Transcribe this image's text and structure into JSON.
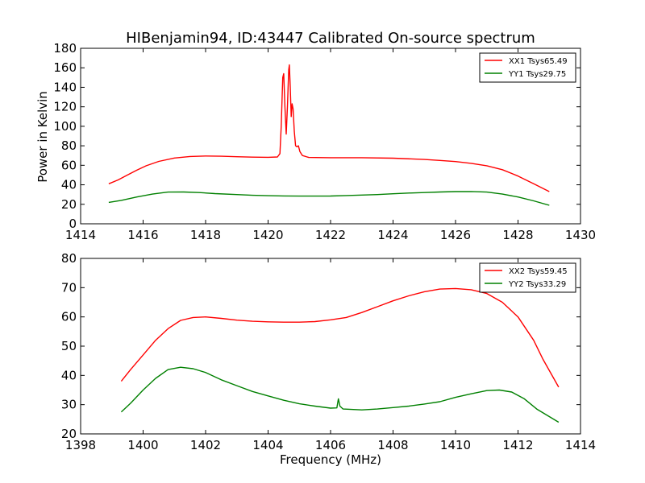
{
  "figure": {
    "title": "HIBenjamin94, ID:43447 Calibrated On-source spectrum",
    "xlabel": "Frequency (MHz)"
  },
  "chart_data": [
    {
      "type": "line",
      "title": "HIBenjamin94, ID:43447 Calibrated On-source spectrum",
      "xlabel": "",
      "ylabel": "Power in Kelvin",
      "xlim": [
        1414,
        1430
      ],
      "ylim": [
        0,
        180
      ],
      "xticks": [
        1414,
        1416,
        1418,
        1420,
        1422,
        1424,
        1426,
        1428,
        1430
      ],
      "yticks": [
        0,
        20,
        40,
        60,
        80,
        100,
        120,
        140,
        160,
        180
      ],
      "grid": false,
      "legend_position": "top-right",
      "series": [
        {
          "name": "XX1 Tsys65.49",
          "color": "#ff0000",
          "points": [
            [
              1414.9,
              41
            ],
            [
              1415.2,
              45
            ],
            [
              1415.5,
              50
            ],
            [
              1415.8,
              55
            ],
            [
              1416.1,
              59.5
            ],
            [
              1416.5,
              64
            ],
            [
              1417,
              67.5
            ],
            [
              1417.5,
              69
            ],
            [
              1418,
              69.5
            ],
            [
              1418.5,
              69.3
            ],
            [
              1419,
              68.8
            ],
            [
              1419.5,
              68.4
            ],
            [
              1420,
              68.2
            ],
            [
              1420.3,
              68.5
            ],
            [
              1420.38,
              72
            ],
            [
              1420.42,
              100
            ],
            [
              1420.47,
              150
            ],
            [
              1420.5,
              154
            ],
            [
              1420.54,
              120
            ],
            [
              1420.58,
              92
            ],
            [
              1420.62,
              120
            ],
            [
              1420.66,
              158
            ],
            [
              1420.68,
              163
            ],
            [
              1420.71,
              140
            ],
            [
              1420.74,
              110
            ],
            [
              1420.77,
              123
            ],
            [
              1420.8,
              118
            ],
            [
              1420.84,
              95
            ],
            [
              1420.88,
              80
            ],
            [
              1420.92,
              79
            ],
            [
              1420.97,
              80
            ],
            [
              1421.02,
              74
            ],
            [
              1421.1,
              70
            ],
            [
              1421.3,
              68
            ],
            [
              1422,
              67.8
            ],
            [
              1423,
              67.8
            ],
            [
              1424,
              67.3
            ],
            [
              1425,
              66
            ],
            [
              1425.5,
              65
            ],
            [
              1426,
              63.8
            ],
            [
              1426.5,
              62
            ],
            [
              1427,
              59.5
            ],
            [
              1427.5,
              55.5
            ],
            [
              1428,
              49
            ],
            [
              1428.5,
              41
            ],
            [
              1429,
              33
            ]
          ]
        },
        {
          "name": "YY1 Tsys29.75",
          "color": "#008000",
          "points": [
            [
              1414.9,
              22
            ],
            [
              1415.3,
              24
            ],
            [
              1415.8,
              27.5
            ],
            [
              1416.3,
              30.5
            ],
            [
              1416.8,
              32.5
            ],
            [
              1417.3,
              32.6
            ],
            [
              1417.8,
              32
            ],
            [
              1418.3,
              31
            ],
            [
              1419,
              30
            ],
            [
              1419.5,
              29.2
            ],
            [
              1420,
              28.8
            ],
            [
              1420.5,
              28.6
            ],
            [
              1421,
              28.4
            ],
            [
              1422,
              28.5
            ],
            [
              1422.5,
              29
            ],
            [
              1423,
              29.5
            ],
            [
              1423.5,
              30
            ],
            [
              1424,
              30.8
            ],
            [
              1424.5,
              31.5
            ],
            [
              1425,
              32
            ],
            [
              1425.5,
              32.6
            ],
            [
              1426,
              33
            ],
            [
              1426.5,
              33.1
            ],
            [
              1427,
              32.5
            ],
            [
              1427.5,
              30.5
            ],
            [
              1428,
              27.5
            ],
            [
              1428.5,
              23.5
            ],
            [
              1429,
              19
            ]
          ]
        }
      ]
    },
    {
      "type": "line",
      "title": "",
      "xlabel": "Frequency (MHz)",
      "ylabel": "",
      "xlim": [
        1398,
        1414
      ],
      "ylim": [
        20,
        80
      ],
      "xticks": [
        1398,
        1400,
        1402,
        1404,
        1406,
        1408,
        1410,
        1412,
        1414
      ],
      "yticks": [
        20,
        30,
        40,
        50,
        60,
        70,
        80
      ],
      "grid": false,
      "legend_position": "top-right",
      "series": [
        {
          "name": "XX2 Tsys59.45",
          "color": "#ff0000",
          "points": [
            [
              1399.3,
              38
            ],
            [
              1399.6,
              42
            ],
            [
              1400,
              47
            ],
            [
              1400.4,
              52
            ],
            [
              1400.8,
              56
            ],
            [
              1401.2,
              58.8
            ],
            [
              1401.6,
              59.8
            ],
            [
              1402,
              60
            ],
            [
              1402.5,
              59.5
            ],
            [
              1403,
              58.9
            ],
            [
              1403.5,
              58.5
            ],
            [
              1404,
              58.3
            ],
            [
              1404.5,
              58.2
            ],
            [
              1405,
              58.2
            ],
            [
              1405.5,
              58.4
            ],
            [
              1406,
              59
            ],
            [
              1406.5,
              59.8
            ],
            [
              1407,
              61.5
            ],
            [
              1407.5,
              63.5
            ],
            [
              1408,
              65.5
            ],
            [
              1408.5,
              67.2
            ],
            [
              1409,
              68.6
            ],
            [
              1409.5,
              69.5
            ],
            [
              1410,
              69.7
            ],
            [
              1410.5,
              69.3
            ],
            [
              1411,
              68
            ],
            [
              1411.5,
              65
            ],
            [
              1412,
              60
            ],
            [
              1412.5,
              52
            ],
            [
              1412.8,
              45.5
            ],
            [
              1413.3,
              36
            ]
          ]
        },
        {
          "name": "YY2 Tsys33.29",
          "color": "#008000",
          "points": [
            [
              1399.3,
              27.5
            ],
            [
              1399.6,
              30.5
            ],
            [
              1400,
              35
            ],
            [
              1400.4,
              39
            ],
            [
              1400.8,
              42
            ],
            [
              1401.2,
              42.8
            ],
            [
              1401.6,
              42.3
            ],
            [
              1402,
              41
            ],
            [
              1402.5,
              38.5
            ],
            [
              1403,
              36.5
            ],
            [
              1403.5,
              34.5
            ],
            [
              1404,
              33
            ],
            [
              1404.5,
              31.5
            ],
            [
              1405,
              30.3
            ],
            [
              1405.5,
              29.5
            ],
            [
              1406,
              28.8
            ],
            [
              1406.2,
              28.9
            ],
            [
              1406.25,
              32
            ],
            [
              1406.3,
              29.5
            ],
            [
              1406.4,
              28.5
            ],
            [
              1407,
              28.2
            ],
            [
              1407.5,
              28.5
            ],
            [
              1408,
              29
            ],
            [
              1408.5,
              29.5
            ],
            [
              1409,
              30.2
            ],
            [
              1409.5,
              31
            ],
            [
              1410,
              32.5
            ],
            [
              1410.5,
              33.7
            ],
            [
              1411,
              34.8
            ],
            [
              1411.4,
              35
            ],
            [
              1411.8,
              34.3
            ],
            [
              1412.2,
              32
            ],
            [
              1412.6,
              28.5
            ],
            [
              1413.3,
              24
            ]
          ]
        }
      ]
    }
  ]
}
